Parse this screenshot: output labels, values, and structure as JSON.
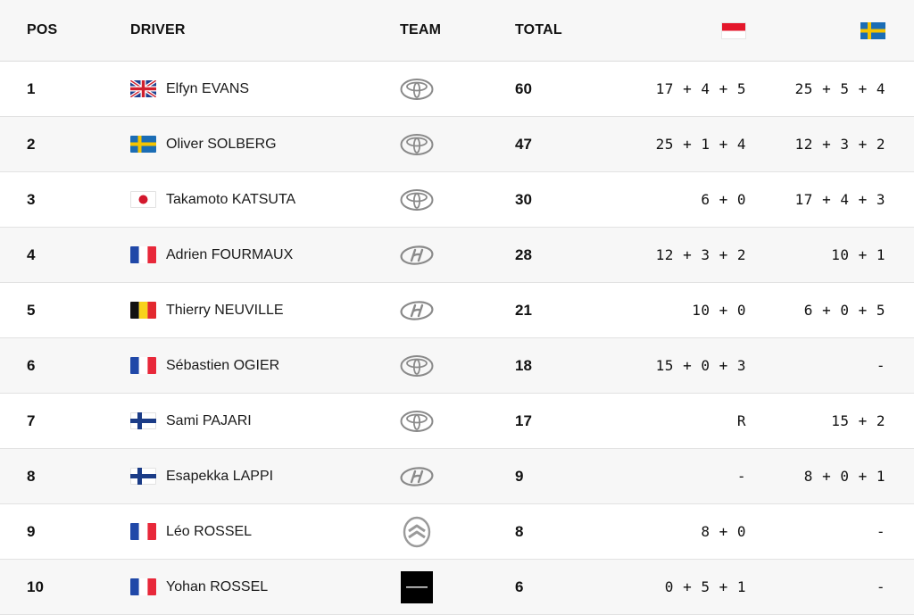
{
  "header": {
    "pos": "POS",
    "driver": "DRIVER",
    "team": "TEAM",
    "total": "TOTAL",
    "rally1_flag": "monaco-flag",
    "rally2_flag": "sweden-flag"
  },
  "rows": [
    {
      "pos": "1",
      "flag": "uk-flag",
      "name": "Elfyn EVANS",
      "team_logo": "toyota-logo",
      "total": "60",
      "r1": "17 + 4 + 5",
      "r2": "25 + 5 + 4"
    },
    {
      "pos": "2",
      "flag": "sweden-flag",
      "name": "Oliver SOLBERG",
      "team_logo": "toyota-logo",
      "total": "47",
      "r1": "25 + 1 + 4",
      "r2": "12 + 3 + 2"
    },
    {
      "pos": "3",
      "flag": "japan-flag",
      "name": "Takamoto KATSUTA",
      "team_logo": "toyota-logo",
      "total": "30",
      "r1": "6 + 0",
      "r2": "17 + 4 + 3"
    },
    {
      "pos": "4",
      "flag": "france-flag",
      "name": "Adrien FOURMAUX",
      "team_logo": "hyundai-logo",
      "total": "28",
      "r1": "12 + 3 + 2",
      "r2": "10 + 1"
    },
    {
      "pos": "5",
      "flag": "belgium-flag",
      "name": "Thierry NEUVILLE",
      "team_logo": "hyundai-logo",
      "total": "21",
      "r1": "10 + 0",
      "r2": "6 + 0 + 5"
    },
    {
      "pos": "6",
      "flag": "france-flag",
      "name": "Sébastien OGIER",
      "team_logo": "toyota-logo",
      "total": "18",
      "r1": "15 + 0 + 3",
      "r2": "-"
    },
    {
      "pos": "7",
      "flag": "finland-flag",
      "name": "Sami PAJARI",
      "team_logo": "toyota-logo",
      "total": "17",
      "r1": "R",
      "r2": "15 + 2"
    },
    {
      "pos": "8",
      "flag": "finland-flag",
      "name": "Esapekka LAPPI",
      "team_logo": "hyundai-logo",
      "total": "9",
      "r1": "-",
      "r2": "8 + 0 + 1"
    },
    {
      "pos": "9",
      "flag": "france-flag",
      "name": "Léo ROSSEL",
      "team_logo": "citroen-logo",
      "total": "8",
      "r1": "8 + 0",
      "r2": "-"
    },
    {
      "pos": "10",
      "flag": "france-flag",
      "name": "Yohan ROSSEL",
      "team_logo": "lancia-logo",
      "total": "6",
      "r1": "0 + 5 + 1",
      "r2": "-"
    }
  ],
  "colors": {
    "row_alt": "#f7f7f7",
    "border": "#e2e2e2",
    "text": "#111111"
  }
}
